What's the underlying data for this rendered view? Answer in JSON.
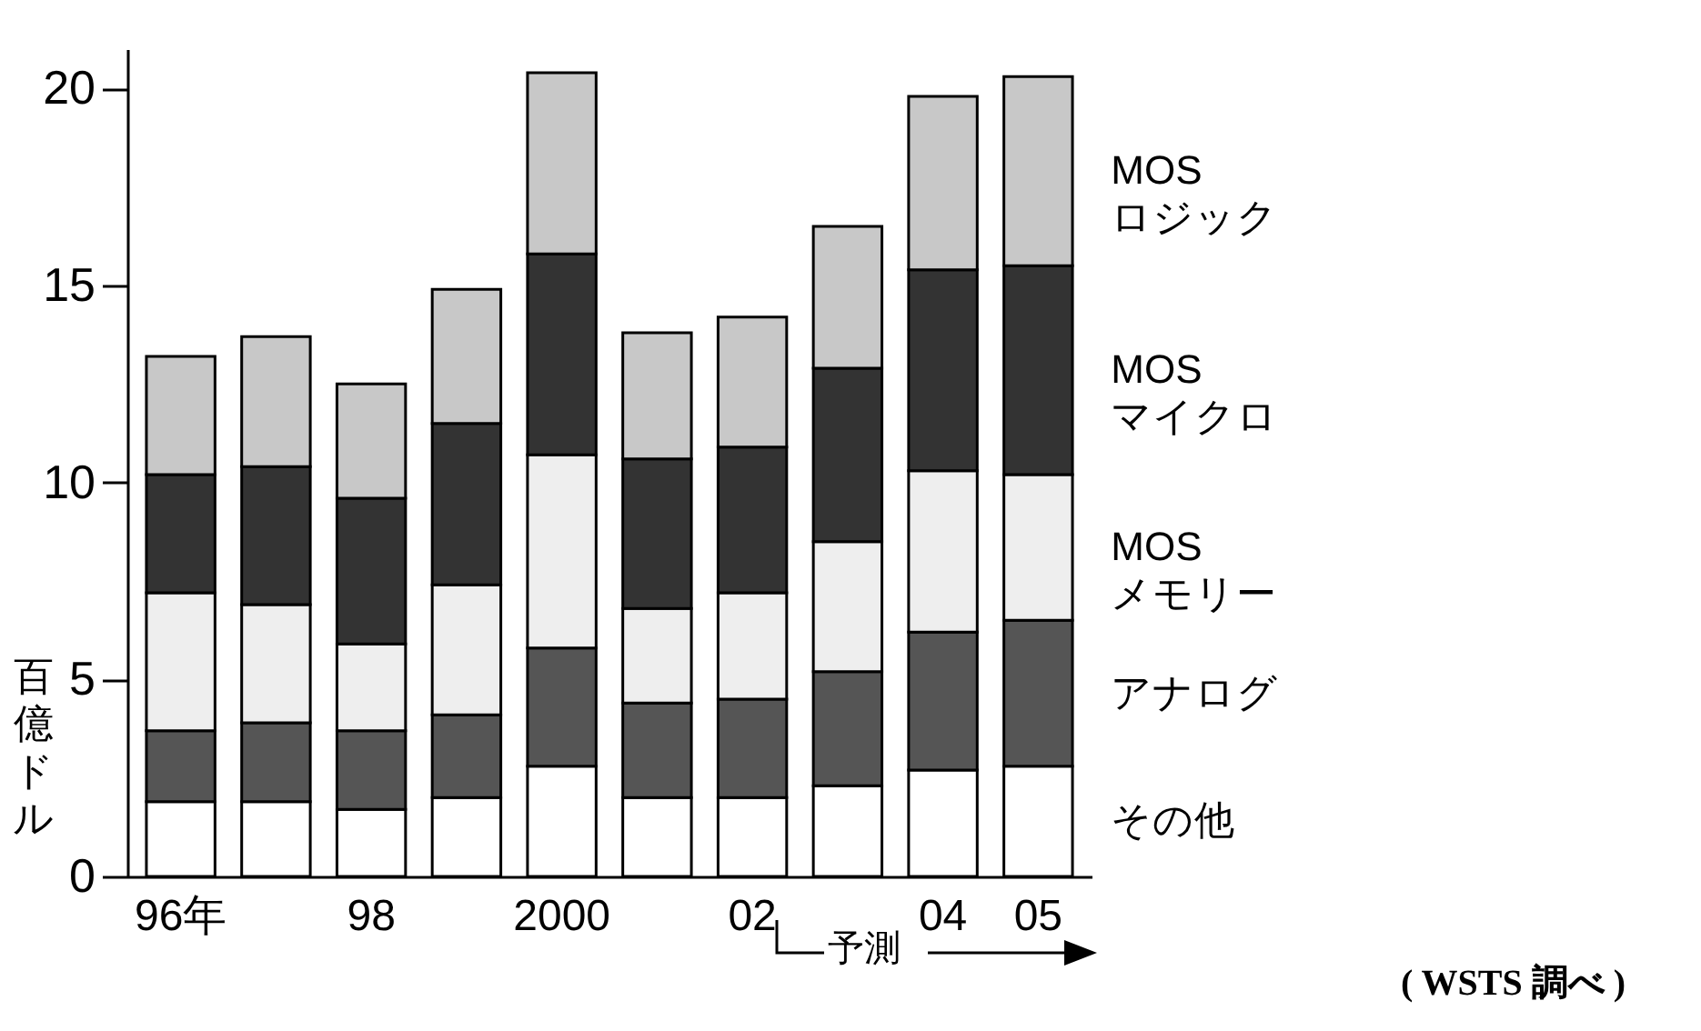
{
  "chart_data": {
    "type": "bar",
    "stacked": true,
    "ylabel": "百億ドル",
    "categories": [
      "96年",
      null,
      "98",
      null,
      "2000",
      null,
      "02",
      null,
      "04",
      "05"
    ],
    "series": [
      {
        "name": "その他",
        "color": "#ffffff",
        "values": [
          1.9,
          1.9,
          1.7,
          2.0,
          2.8,
          2.0,
          2.0,
          2.3,
          2.7,
          2.8
        ]
      },
      {
        "name": "アナログ",
        "color": "#555555",
        "values": [
          1.8,
          2.0,
          2.0,
          2.1,
          3.0,
          2.4,
          2.5,
          2.9,
          3.5,
          3.7
        ]
      },
      {
        "name": "MOS\nメモリー",
        "color": "#eeeeee",
        "values": [
          3.5,
          3.0,
          2.2,
          3.3,
          4.9,
          2.4,
          2.7,
          3.3,
          4.1,
          3.7
        ]
      },
      {
        "name": "MOS\nマイクロ",
        "color": "#333333",
        "values": [
          3.0,
          3.5,
          3.7,
          4.1,
          5.1,
          3.8,
          3.7,
          4.4,
          5.1,
          5.3
        ]
      },
      {
        "name": "MOS\nロジック",
        "color": "#c8c8c8",
        "values": [
          3.0,
          3.3,
          2.9,
          3.4,
          4.6,
          3.2,
          3.3,
          3.6,
          4.4,
          4.8
        ]
      }
    ],
    "ylim": [
      0,
      21
    ],
    "yticks": [
      0,
      5,
      10,
      15,
      20
    ],
    "grid": false,
    "legend": false,
    "annotations": [
      "予測",
      "( WSTS 調べ )"
    ]
  }
}
